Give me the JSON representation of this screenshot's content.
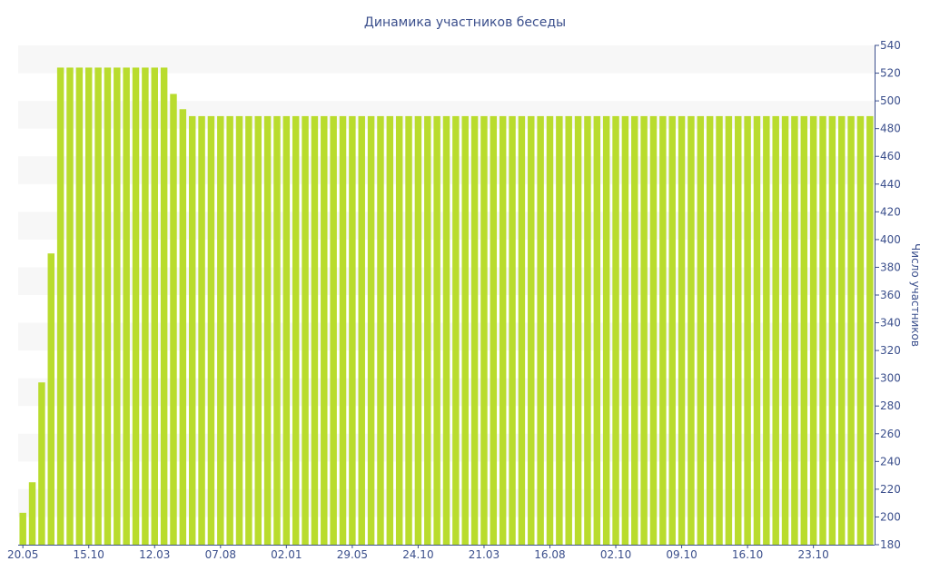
{
  "chart_data": {
    "type": "bar",
    "title": "Динамика участников беседы",
    "xlabel": "",
    "ylabel": "Число участников",
    "ylim": [
      180,
      540
    ],
    "yticks": [
      180,
      200,
      220,
      240,
      260,
      280,
      300,
      320,
      340,
      360,
      380,
      400,
      420,
      440,
      460,
      480,
      500,
      520,
      540
    ],
    "y_axis_position": "right",
    "grid": "alternating horizontal bands",
    "x_tick_labels": [
      {
        "label": "20.05",
        "index": 0
      },
      {
        "label": "15.10",
        "index": 7
      },
      {
        "label": "12.03",
        "index": 14
      },
      {
        "label": "07.08",
        "index": 21
      },
      {
        "label": "02.01",
        "index": 28
      },
      {
        "label": "29.05",
        "index": 35
      },
      {
        "label": "24.10",
        "index": 42
      },
      {
        "label": "21.03",
        "index": 49
      },
      {
        "label": "16.08",
        "index": 56
      },
      {
        "label": "02.10",
        "index": 63
      },
      {
        "label": "09.10",
        "index": 70
      },
      {
        "label": "16.10",
        "index": 77
      },
      {
        "label": "23.10",
        "index": 84
      }
    ],
    "series": [
      {
        "values": [
          203,
          225,
          297,
          390,
          524,
          524,
          524,
          524,
          524,
          524,
          524,
          524,
          524,
          524,
          524,
          524,
          505,
          494,
          489,
          489,
          489,
          489,
          489,
          489,
          489,
          489,
          489,
          489,
          489,
          489,
          489,
          489,
          489,
          489,
          489,
          489,
          489,
          489,
          489,
          489,
          489,
          489,
          489,
          489,
          489,
          489,
          489,
          489,
          489,
          489,
          489,
          489,
          489,
          489,
          489,
          489,
          489,
          489,
          489,
          489,
          489,
          489,
          489,
          489,
          489,
          489,
          489,
          489,
          489,
          489,
          489,
          489,
          489,
          489,
          489,
          489,
          489,
          489,
          489,
          489,
          489,
          489,
          489,
          489,
          489,
          489,
          489,
          489,
          489,
          489,
          489
        ],
        "color": "#b9dc2d"
      }
    ]
  }
}
